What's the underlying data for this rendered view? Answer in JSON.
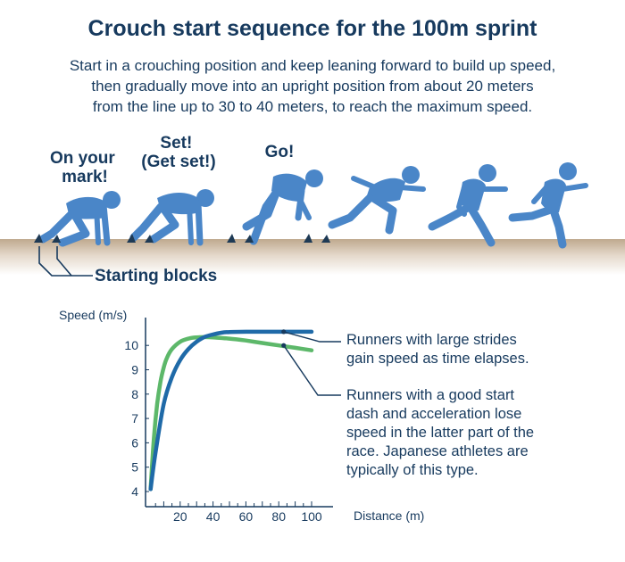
{
  "title": "Crouch start sequence for the 100m sprint",
  "subtitle": [
    "Start in a crouching position and keep leaning forward to build up speed,",
    "then gradually move into an upright position from about 20 meters",
    "from the line up to 30 to 40 meters, to reach the maximum speed."
  ],
  "stages": [
    {
      "lines": [
        "On your",
        "mark!"
      ]
    },
    {
      "lines": [
        "Set!",
        "(Get set!)"
      ]
    },
    {
      "lines": [
        "Go!"
      ]
    }
  ],
  "blocks_label": "Starting blocks",
  "colors": {
    "navy": "#173a5e",
    "runner": "#4a86c8",
    "ground": "#c9b59c",
    "block": "#1e3a55",
    "series_large_strides": "#1f6aa8",
    "series_good_start": "#5db86a"
  },
  "chart_data": {
    "type": "line",
    "ylabel": "Speed (m/s)",
    "xlabel": "Distance (m)",
    "x_ticks": [
      20,
      40,
      60,
      80,
      100
    ],
    "y_ticks": [
      4,
      5,
      6,
      7,
      8,
      9,
      10
    ],
    "xlim": [
      0,
      100
    ],
    "ylim": [
      3.5,
      11.3
    ],
    "series": [
      {
        "key": "large_strides",
        "x": [
          2,
          5,
          10,
          15,
          20,
          25,
          30,
          35,
          40,
          45,
          50,
          60,
          70,
          80,
          90,
          100
        ],
        "y": [
          4.1,
          5.6,
          7.6,
          8.7,
          9.4,
          9.85,
          10.15,
          10.35,
          10.45,
          10.52,
          10.55,
          10.56,
          10.56,
          10.56,
          10.56,
          10.56
        ],
        "marker_x": 83,
        "marker_y": 10.56
      },
      {
        "key": "good_start",
        "x": [
          2,
          4,
          6,
          8,
          10,
          12,
          15,
          20,
          25,
          30,
          35,
          40,
          50,
          60,
          70,
          80,
          90,
          100
        ],
        "y": [
          4.1,
          6.2,
          7.6,
          8.5,
          9.1,
          9.5,
          9.85,
          10.15,
          10.28,
          10.33,
          10.34,
          10.33,
          10.28,
          10.2,
          10.1,
          10.0,
          9.9,
          9.8
        ],
        "marker_x": 83,
        "marker_y": 10.0
      }
    ],
    "annotations": [
      {
        "series": "large_strides",
        "lines": [
          "Runners with large strides",
          "gain speed as time elapses."
        ]
      },
      {
        "series": "good_start",
        "lines": [
          "Runners with a good start",
          "dash and acceleration lose",
          "speed in the latter part of the",
          "race. Japanese athletes are",
          "typically of this type."
        ]
      }
    ]
  }
}
